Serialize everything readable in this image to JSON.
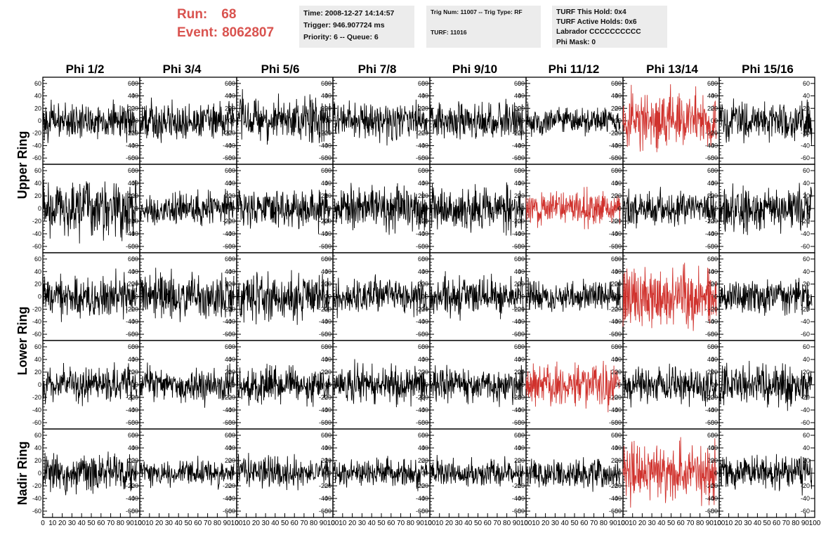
{
  "header": {
    "run_label": "Run:",
    "run_value": "68",
    "event_label": "Event:",
    "event_value": "8062807",
    "time": "Time: 2008-12-27 14:14:57",
    "trigger": "Trigger: 946.907724 ms",
    "priority": "Priority: 6 -- Queue: 6",
    "trig_num": "Trig Num: 11007 -- Trig Type: RF",
    "turf": "TURF: 11016",
    "turf_this_hold": "TURF This Hold: 0x4",
    "turf_active_holds": "TURF Active Holds: 0x6",
    "labrador": "Labrador CCCCCCCCCC",
    "phi_mask": "Phi Mask: 0"
  },
  "colors": {
    "trace": "#000000",
    "highlight": "#d0322d",
    "header_accent": "#d9534f",
    "info_bg": "#ececec"
  },
  "chart_data": {
    "type": "line",
    "columns": [
      "Phi 1/2",
      "Phi 3/4",
      "Phi 5/6",
      "Phi 7/8",
      "Phi 9/10",
      "Phi 11/12",
      "Phi 13/14",
      "Phi 15/16"
    ],
    "rows": [
      "Upper Ring",
      "Upper Ring",
      "Lower Ring",
      "Lower Ring",
      "Nadir Ring"
    ],
    "row_labels": [
      {
        "label": "Upper Ring",
        "rows": [
          0,
          1
        ]
      },
      {
        "label": "Lower Ring",
        "rows": [
          2,
          3
        ]
      },
      {
        "label": "Nadir Ring",
        "rows": [
          4
        ]
      }
    ],
    "xlim": [
      0,
      100
    ],
    "ylim": [
      -70,
      70
    ],
    "y_ticks": [
      -60,
      -40,
      -20,
      0,
      20,
      40,
      60
    ],
    "x_ticks": [
      0,
      10,
      20,
      30,
      40,
      50,
      60,
      70,
      80,
      90,
      100
    ],
    "x_tick_labels": [
      "0",
      "10",
      "20",
      "30",
      "40",
      "50",
      "60",
      "70",
      "80",
      "90",
      "100"
    ],
    "highlighted_panels": [
      [
        0,
        6
      ],
      [
        1,
        5
      ],
      [
        2,
        6
      ],
      [
        3,
        5
      ],
      [
        4,
        6
      ]
    ],
    "samples_per_trace": 260,
    "trace_x_range": [
      0,
      97
    ],
    "traces": [
      [
        {
          "amp": 14,
          "seed": 101
        },
        {
          "amp": 15,
          "seed": 102
        },
        {
          "amp": 18,
          "seed": 103
        },
        {
          "amp": 14,
          "seed": 104
        },
        {
          "amp": 15,
          "seed": 105
        },
        {
          "amp": 11,
          "seed": 106
        },
        {
          "amp": 21,
          "seed": 107
        },
        {
          "amp": 15,
          "seed": 108
        }
      ],
      [
        {
          "amp": 22,
          "seed": 201
        },
        {
          "amp": 13,
          "seed": 202
        },
        {
          "amp": 15,
          "seed": 203
        },
        {
          "amp": 17,
          "seed": 204
        },
        {
          "amp": 17,
          "seed": 205
        },
        {
          "amp": 13,
          "seed": 206
        },
        {
          "amp": 13,
          "seed": 207
        },
        {
          "amp": 17,
          "seed": 208
        }
      ],
      [
        {
          "amp": 16,
          "seed": 301
        },
        {
          "amp": 18,
          "seed": 302
        },
        {
          "amp": 18,
          "seed": 303
        },
        {
          "amp": 13,
          "seed": 304
        },
        {
          "amp": 15,
          "seed": 305
        },
        {
          "amp": 12,
          "seed": 306
        },
        {
          "amp": 24,
          "seed": 307
        },
        {
          "amp": 13,
          "seed": 308
        }
      ],
      [
        {
          "amp": 14,
          "seed": 401
        },
        {
          "amp": 14,
          "seed": 402
        },
        {
          "amp": 14,
          "seed": 403
        },
        {
          "amp": 15,
          "seed": 404
        },
        {
          "amp": 14,
          "seed": 405
        },
        {
          "amp": 17,
          "seed": 406
        },
        {
          "amp": 14,
          "seed": 407
        },
        {
          "amp": 16,
          "seed": 408
        }
      ],
      [
        {
          "amp": 14,
          "seed": 501
        },
        {
          "amp": 10,
          "seed": 502
        },
        {
          "amp": 13,
          "seed": 503
        },
        {
          "amp": 11,
          "seed": 504
        },
        {
          "amp": 11,
          "seed": 505
        },
        {
          "amp": 11,
          "seed": 506
        },
        {
          "amp": 22,
          "seed": 507
        },
        {
          "amp": 14,
          "seed": 508
        }
      ]
    ]
  }
}
